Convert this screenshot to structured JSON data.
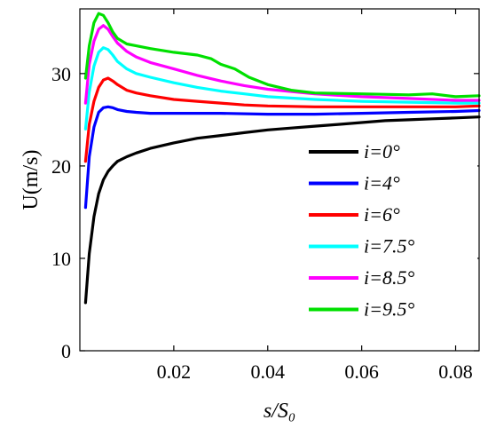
{
  "chart_data": {
    "type": "line",
    "xlabel": "s/S₀",
    "ylabel": "U(m/s)",
    "xlim": [
      0,
      0.085
    ],
    "ylim": [
      0,
      37
    ],
    "xticks": [
      0.02,
      0.04,
      0.06,
      0.08
    ],
    "xtick_labels": [
      "0.02",
      "0.04",
      "0.06",
      "0.08"
    ],
    "yticks": [
      0,
      10,
      20,
      30
    ],
    "ytick_labels": [
      "0",
      "10",
      "20",
      "30"
    ],
    "grid": false,
    "legend_position": "bottom-right",
    "series": [
      {
        "name": "i=0°",
        "color": "#000000",
        "x": [
          0.0012,
          0.002,
          0.003,
          0.004,
          0.005,
          0.006,
          0.007,
          0.008,
          0.01,
          0.012,
          0.015,
          0.02,
          0.025,
          0.03,
          0.035,
          0.04,
          0.045,
          0.05,
          0.055,
          0.06,
          0.065,
          0.07,
          0.075,
          0.08,
          0.085
        ],
        "y": [
          5.2,
          10.5,
          14.5,
          17.0,
          18.5,
          19.4,
          20.0,
          20.5,
          21.0,
          21.4,
          21.9,
          22.5,
          23.0,
          23.3,
          23.6,
          23.9,
          24.1,
          24.3,
          24.5,
          24.7,
          24.9,
          25.0,
          25.1,
          25.2,
          25.3
        ]
      },
      {
        "name": "i=4°",
        "color": "#0000ff",
        "x": [
          0.0012,
          0.002,
          0.003,
          0.004,
          0.005,
          0.006,
          0.007,
          0.008,
          0.01,
          0.012,
          0.015,
          0.02,
          0.03,
          0.04,
          0.05,
          0.06,
          0.07,
          0.08,
          0.085
        ],
        "y": [
          15.5,
          21.0,
          24.2,
          25.8,
          26.3,
          26.4,
          26.3,
          26.1,
          25.9,
          25.8,
          25.7,
          25.7,
          25.7,
          25.6,
          25.6,
          25.7,
          25.8,
          25.9,
          26.0
        ]
      },
      {
        "name": "i=6°",
        "color": "#ff0000",
        "x": [
          0.0012,
          0.002,
          0.003,
          0.004,
          0.005,
          0.006,
          0.007,
          0.008,
          0.01,
          0.012,
          0.015,
          0.02,
          0.025,
          0.03,
          0.035,
          0.04,
          0.05,
          0.06,
          0.07,
          0.08,
          0.085
        ],
        "y": [
          20.5,
          24.5,
          27.0,
          28.5,
          29.3,
          29.5,
          29.2,
          28.8,
          28.2,
          27.9,
          27.6,
          27.2,
          27.0,
          26.8,
          26.6,
          26.5,
          26.4,
          26.4,
          26.4,
          26.4,
          26.5
        ]
      },
      {
        "name": "i=7.5°",
        "color": "#00ffff",
        "x": [
          0.0012,
          0.002,
          0.003,
          0.004,
          0.005,
          0.006,
          0.007,
          0.008,
          0.01,
          0.012,
          0.015,
          0.02,
          0.025,
          0.03,
          0.035,
          0.04,
          0.05,
          0.06,
          0.07,
          0.08,
          0.085
        ],
        "y": [
          24.0,
          28.0,
          30.8,
          32.3,
          32.8,
          32.6,
          32.0,
          31.3,
          30.5,
          30.0,
          29.6,
          29.0,
          28.5,
          28.1,
          27.8,
          27.5,
          27.2,
          27.0,
          26.9,
          26.8,
          26.8
        ]
      },
      {
        "name": "i=8.5°",
        "color": "#ff00ff",
        "x": [
          0.0012,
          0.002,
          0.003,
          0.004,
          0.005,
          0.006,
          0.007,
          0.008,
          0.01,
          0.012,
          0.015,
          0.02,
          0.025,
          0.03,
          0.035,
          0.04,
          0.05,
          0.06,
          0.07,
          0.08,
          0.085
        ],
        "y": [
          26.8,
          31.0,
          33.5,
          34.8,
          35.2,
          34.8,
          34.0,
          33.3,
          32.4,
          31.8,
          31.2,
          30.5,
          29.8,
          29.2,
          28.7,
          28.3,
          27.8,
          27.5,
          27.3,
          27.1,
          27.1
        ]
      },
      {
        "name": "i=9.5°",
        "color": "#00e000",
        "x": [
          0.0012,
          0.002,
          0.003,
          0.004,
          0.005,
          0.006,
          0.007,
          0.008,
          0.01,
          0.012,
          0.015,
          0.02,
          0.025,
          0.028,
          0.03,
          0.033,
          0.036,
          0.04,
          0.045,
          0.05,
          0.06,
          0.07,
          0.075,
          0.08,
          0.085
        ],
        "y": [
          29.5,
          33.0,
          35.5,
          36.5,
          36.3,
          35.5,
          34.5,
          33.8,
          33.2,
          33.0,
          32.7,
          32.3,
          32.0,
          31.6,
          31.0,
          30.5,
          29.6,
          28.8,
          28.2,
          27.9,
          27.8,
          27.7,
          27.8,
          27.5,
          27.6
        ]
      }
    ]
  }
}
